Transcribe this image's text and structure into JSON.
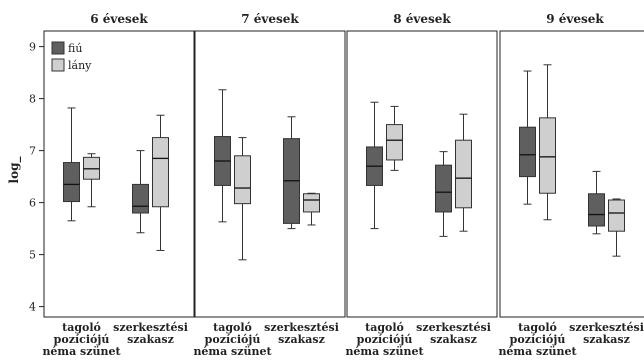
{
  "chart_data": {
    "type": "boxplot",
    "ylabel": "log_",
    "ylim": [
      3.8,
      9.3
    ],
    "yticks": [
      4,
      5,
      6,
      7,
      8,
      9
    ],
    "legend": {
      "placement": "top-left",
      "entries": [
        {
          "name": "fiú",
          "color": "#5f5f5f"
        },
        {
          "name": "lány",
          "color": "#cfcfcf"
        }
      ]
    },
    "categories": [
      [
        "tagoló",
        "pozíciójú",
        "néma szünet"
      ],
      [
        "szerkesztési",
        "szakasz"
      ]
    ],
    "panels": [
      {
        "title": "6 évesek",
        "boxes": [
          {
            "category": 0,
            "series": "fiú",
            "whisker_low": 5.65,
            "q1": 6.02,
            "median": 6.35,
            "q3": 6.77,
            "whisker_high": 7.82
          },
          {
            "category": 0,
            "series": "lány",
            "whisker_low": 5.92,
            "q1": 6.45,
            "median": 6.65,
            "q3": 6.87,
            "whisker_high": 6.94
          },
          {
            "category": 1,
            "series": "fiú",
            "whisker_low": 5.42,
            "q1": 5.8,
            "median": 5.93,
            "q3": 6.35,
            "whisker_high": 7.0
          },
          {
            "category": 1,
            "series": "lány",
            "whisker_low": 5.08,
            "q1": 5.92,
            "median": 6.85,
            "q3": 7.25,
            "whisker_high": 7.68
          }
        ]
      },
      {
        "title": "7 évesek",
        "boxes": [
          {
            "category": 0,
            "series": "fiú",
            "whisker_low": 5.63,
            "q1": 6.33,
            "median": 6.8,
            "q3": 7.27,
            "whisker_high": 8.17
          },
          {
            "category": 0,
            "series": "lány",
            "whisker_low": 4.9,
            "q1": 5.98,
            "median": 6.28,
            "q3": 6.9,
            "whisker_high": 7.25
          },
          {
            "category": 1,
            "series": "fiú",
            "whisker_low": 5.5,
            "q1": 5.6,
            "median": 6.42,
            "q3": 7.23,
            "whisker_high": 7.65
          },
          {
            "category": 1,
            "series": "lány",
            "whisker_low": 5.57,
            "q1": 5.82,
            "median": 6.05,
            "q3": 6.17,
            "whisker_high": 6.18
          }
        ]
      },
      {
        "title": "8 évesek",
        "boxes": [
          {
            "category": 0,
            "series": "fiú",
            "whisker_low": 5.5,
            "q1": 6.33,
            "median": 6.7,
            "q3": 7.07,
            "whisker_high": 7.93
          },
          {
            "category": 0,
            "series": "lány",
            "whisker_low": 6.62,
            "q1": 6.82,
            "median": 7.2,
            "q3": 7.5,
            "whisker_high": 7.85
          },
          {
            "category": 1,
            "series": "fiú",
            "whisker_low": 5.35,
            "q1": 5.82,
            "median": 6.2,
            "q3": 6.72,
            "whisker_high": 6.98
          },
          {
            "category": 1,
            "series": "lány",
            "whisker_low": 5.45,
            "q1": 5.9,
            "median": 6.47,
            "q3": 7.2,
            "whisker_high": 7.7
          }
        ]
      },
      {
        "title": "9 évesek",
        "boxes": [
          {
            "category": 0,
            "series": "fiú",
            "whisker_low": 5.97,
            "q1": 6.5,
            "median": 6.92,
            "q3": 7.45,
            "whisker_high": 8.53
          },
          {
            "category": 0,
            "series": "lány",
            "whisker_low": 5.67,
            "q1": 6.18,
            "median": 6.88,
            "q3": 7.63,
            "whisker_high": 8.65
          },
          {
            "category": 1,
            "series": "fiú",
            "whisker_low": 5.4,
            "q1": 5.55,
            "median": 5.77,
            "q3": 6.17,
            "whisker_high": 6.6
          },
          {
            "category": 1,
            "series": "lány",
            "whisker_low": 4.97,
            "q1": 5.45,
            "median": 5.8,
            "q3": 6.05,
            "whisker_high": 6.07
          }
        ]
      }
    ]
  }
}
